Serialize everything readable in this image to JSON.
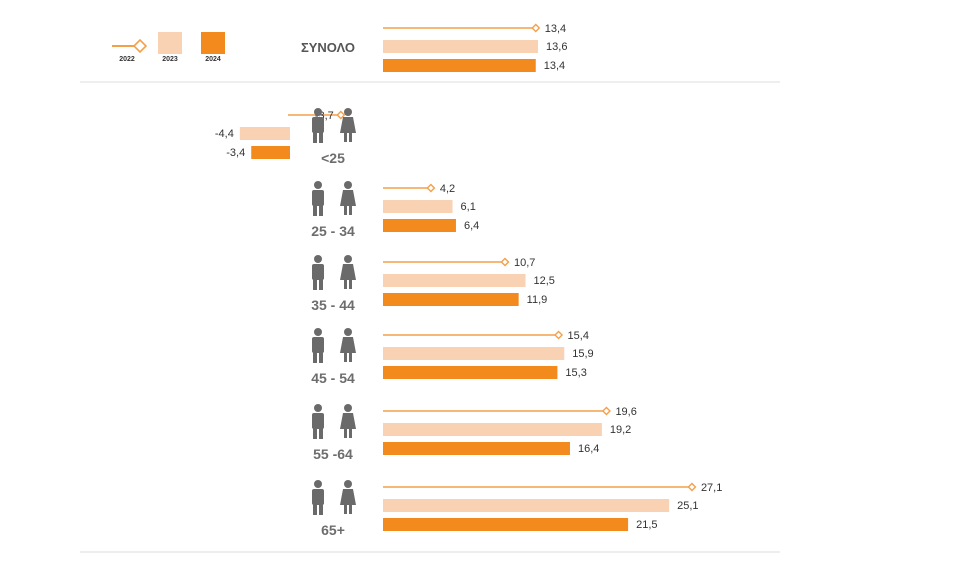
{
  "colors": {
    "y2022": "#f4a04a",
    "y2023": "#f9d2b4",
    "y2024": "#f28a1e",
    "person": "#6a6a6a",
    "divider": "#dddddd"
  },
  "legend": [
    {
      "label": "2022",
      "style": "line-marker",
      "icon": "line-diamond-icon"
    },
    {
      "label": "2023",
      "style": "bar"
    },
    {
      "label": "2024",
      "style": "bar"
    }
  ],
  "chart_data": {
    "type": "bar",
    "orientation": "horizontal",
    "title": "",
    "xlabel": "",
    "ylabel": "",
    "grid": false,
    "legend_position": "top-left",
    "total": {
      "label": "ΣΥΝΟΛΟ",
      "values": {
        "2022": 13.4,
        "2023": 13.6,
        "2024": 13.4
      },
      "display": {
        "2022": "13,4",
        "2023": "13,6",
        "2024": "13,4"
      }
    },
    "categories": [
      "<25",
      "25 - 34",
      "35 - 44",
      "45 - 54",
      "55 -64",
      "65+"
    ],
    "series": [
      {
        "name": "2022",
        "style": "line-marker",
        "values": [
          -3.7,
          4.2,
          10.7,
          15.4,
          19.6,
          27.1
        ],
        "display": [
          "-3,7",
          "4,2",
          "10,7",
          "15,4",
          "19,6",
          "27,1"
        ]
      },
      {
        "name": "2023",
        "style": "bar",
        "values": [
          -4.4,
          6.1,
          12.5,
          15.9,
          19.2,
          25.1
        ],
        "display": [
          "-4,4",
          "6,1",
          "12,5",
          "15,9",
          "19,2",
          "25,1"
        ]
      },
      {
        "name": "2024",
        "style": "bar",
        "values": [
          -3.4,
          6.4,
          11.9,
          15.3,
          16.4,
          21.5
        ],
        "display": [
          "-3,4",
          "6,4",
          "11,9",
          "15,3",
          "16,4",
          "21,5"
        ]
      }
    ],
    "category_icons": [
      "man-woman-icon",
      "man-woman-icon",
      "man-woman-icon",
      "man-woman-icon",
      "man-woman-icon",
      "man-woman-icon"
    ]
  }
}
